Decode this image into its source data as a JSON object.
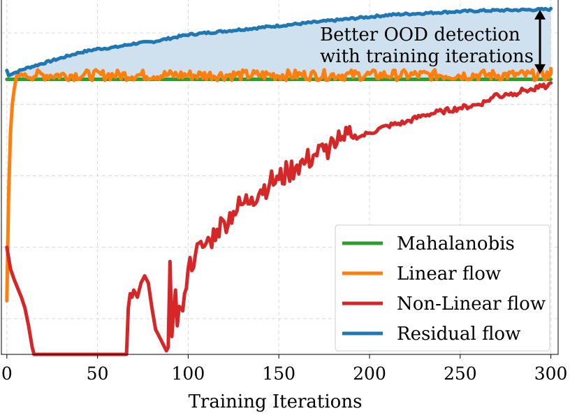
{
  "chart_data": {
    "type": "line",
    "title": "",
    "xlabel": "Training Iterations",
    "ylabel": "",
    "xlim": [
      -3,
      304
    ],
    "ylim": [
      0,
      1
    ],
    "x_ticks": [
      0,
      50,
      100,
      150,
      200,
      250,
      300
    ],
    "x_tick_labels": [
      "0",
      "50",
      "100",
      "150",
      "200",
      "250",
      "300"
    ],
    "y_gridlines": [
      0.1,
      0.3,
      0.5,
      0.7,
      0.9
    ],
    "y_ticks_labeled": false,
    "grid": true,
    "legend": {
      "position": "lower-right"
    },
    "annotation": {
      "text_lines": [
        "Better OOD detection",
        "with training iterations"
      ],
      "arrow": {
        "x": 294,
        "y_top": 0.965,
        "y_bottom": 0.785
      }
    },
    "shaded_region": {
      "between": [
        "Mahalanobis",
        "Residual flow"
      ],
      "color": "#cfe0ef"
    },
    "series": [
      {
        "name": "Mahalanobis",
        "color": "#2ca02c",
        "x": [
          0,
          300
        ],
        "y": [
          0.77,
          0.77
        ]
      },
      {
        "name": "Linear flow",
        "color": "#ff7f0e",
        "x": [
          0,
          1,
          2,
          3,
          4,
          5,
          6,
          7,
          8,
          9,
          10,
          15,
          20,
          25,
          30,
          35,
          40,
          45,
          50,
          55,
          60,
          65,
          70,
          75,
          80,
          85,
          90,
          95,
          100,
          110,
          120,
          130,
          140,
          150,
          160,
          170,
          180,
          190,
          200,
          210,
          220,
          230,
          240,
          250,
          260,
          270,
          280,
          290,
          296,
          300
        ],
        "y": [
          0.15,
          0.45,
          0.62,
          0.7,
          0.74,
          0.77,
          0.79,
          0.78,
          0.785,
          0.78,
          0.785,
          0.78,
          0.79,
          0.775,
          0.785,
          0.78,
          0.79,
          0.775,
          0.785,
          0.78,
          0.79,
          0.775,
          0.785,
          0.78,
          0.79,
          0.775,
          0.785,
          0.78,
          0.79,
          0.775,
          0.785,
          0.78,
          0.79,
          0.775,
          0.785,
          0.78,
          0.79,
          0.775,
          0.785,
          0.78,
          0.79,
          0.775,
          0.785,
          0.78,
          0.79,
          0.775,
          0.785,
          0.78,
          0.77,
          0.8
        ]
      },
      {
        "name": "Non-Linear flow",
        "color": "#d62728",
        "x": [
          0,
          2,
          4,
          6,
          8,
          10,
          12,
          14,
          15,
          66,
          67,
          68,
          69,
          70,
          72,
          74,
          76,
          78,
          80,
          82,
          84,
          86,
          88,
          89,
          90,
          91,
          92,
          93,
          94,
          96,
          98,
          100,
          104,
          108,
          112,
          116,
          120,
          125,
          130,
          135,
          140,
          145,
          150,
          155,
          160,
          165,
          170,
          175,
          178,
          180,
          182,
          184,
          186,
          190,
          195,
          200,
          210,
          220,
          230,
          240,
          250,
          260,
          265,
          268,
          270,
          272,
          275,
          280,
          285,
          290,
          295,
          298,
          300
        ],
        "y": [
          0.3,
          0.24,
          0.21,
          0.185,
          0.16,
          0.13,
          0.08,
          0.02,
          0.0,
          0.0,
          0.13,
          0.17,
          0.16,
          0.18,
          0.16,
          0.2,
          0.22,
          0.2,
          0.13,
          0.07,
          0.05,
          0.03,
          0.01,
          0.02,
          0.26,
          0.05,
          0.12,
          0.18,
          0.08,
          0.13,
          0.17,
          0.24,
          0.28,
          0.3,
          0.32,
          0.35,
          0.37,
          0.4,
          0.42,
          0.44,
          0.46,
          0.48,
          0.49,
          0.51,
          0.53,
          0.54,
          0.56,
          0.57,
          0.58,
          0.6,
          0.59,
          0.6,
          0.6,
          0.61,
          0.61,
          0.62,
          0.64,
          0.65,
          0.67,
          0.68,
          0.69,
          0.7,
          0.71,
          0.72,
          0.73,
          0.72,
          0.73,
          0.73,
          0.74,
          0.74,
          0.75,
          0.75,
          0.76
        ]
      },
      {
        "name": "Residual flow",
        "color": "#1f77b4",
        "x": [
          0,
          1,
          2,
          5,
          10,
          20,
          30,
          40,
          50,
          60,
          70,
          80,
          90,
          100,
          110,
          120,
          130,
          140,
          150,
          160,
          170,
          180,
          190,
          200,
          210,
          220,
          230,
          240,
          250,
          260,
          270,
          280,
          290,
          300
        ],
        "y": [
          0.795,
          0.78,
          0.785,
          0.79,
          0.8,
          0.815,
          0.83,
          0.845,
          0.855,
          0.86,
          0.87,
          0.875,
          0.885,
          0.895,
          0.9,
          0.905,
          0.91,
          0.915,
          0.92,
          0.925,
          0.93,
          0.935,
          0.94,
          0.945,
          0.95,
          0.953,
          0.955,
          0.958,
          0.96,
          0.962,
          0.963,
          0.964,
          0.965,
          0.966
        ]
      }
    ]
  }
}
